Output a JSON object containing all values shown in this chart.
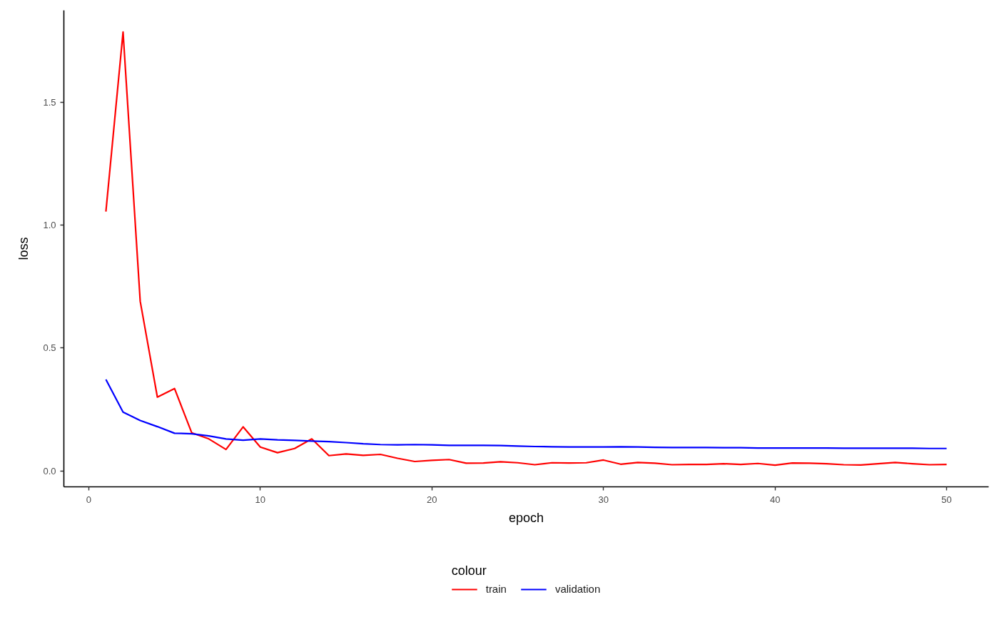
{
  "chart_data": {
    "type": "line",
    "xlabel": "epoch",
    "ylabel": "loss",
    "legend_title": "colour",
    "legend": "bottom",
    "grid": false,
    "x": [
      1,
      2,
      3,
      4,
      5,
      6,
      7,
      8,
      9,
      10,
      11,
      12,
      13,
      14,
      15,
      16,
      17,
      18,
      19,
      20,
      21,
      22,
      23,
      24,
      25,
      26,
      27,
      28,
      29,
      30,
      31,
      32,
      33,
      34,
      35,
      36,
      37,
      38,
      39,
      40,
      41,
      42,
      43,
      44,
      45,
      46,
      47,
      48,
      49,
      50
    ],
    "series": [
      {
        "name": "train",
        "color": "#ff0000",
        "values": [
          1.055,
          1.786,
          0.69,
          0.3,
          0.335,
          0.155,
          0.13,
          0.087,
          0.179,
          0.097,
          0.074,
          0.091,
          0.13,
          0.062,
          0.069,
          0.063,
          0.067,
          0.051,
          0.038,
          0.043,
          0.046,
          0.031,
          0.032,
          0.037,
          0.033,
          0.025,
          0.033,
          0.032,
          0.033,
          0.044,
          0.027,
          0.034,
          0.031,
          0.025,
          0.026,
          0.026,
          0.029,
          0.026,
          0.03,
          0.023,
          0.032,
          0.031,
          0.029,
          0.025,
          0.024,
          0.029,
          0.034,
          0.029,
          0.025,
          0.026
        ]
      },
      {
        "name": "validation",
        "color": "#0000ff",
        "values": [
          0.372,
          0.239,
          0.205,
          0.18,
          0.153,
          0.151,
          0.142,
          0.13,
          0.125,
          0.13,
          0.126,
          0.124,
          0.121,
          0.119,
          0.115,
          0.11,
          0.107,
          0.106,
          0.107,
          0.106,
          0.104,
          0.104,
          0.104,
          0.103,
          0.101,
          0.099,
          0.098,
          0.097,
          0.097,
          0.097,
          0.098,
          0.097,
          0.096,
          0.095,
          0.095,
          0.095,
          0.094,
          0.094,
          0.093,
          0.093,
          0.093,
          0.093,
          0.093,
          0.092,
          0.092,
          0.092,
          0.092,
          0.092,
          0.091,
          0.091
        ]
      }
    ],
    "xlim": [
      -1.45,
      52.45
    ],
    "ylim": [
      -0.065,
      1.874
    ],
    "xticks": [
      0,
      10,
      20,
      30,
      40,
      50
    ],
    "yticks": [
      {
        "value": 0,
        "label": "0.0"
      },
      {
        "value": 0.5,
        "label": "0.5"
      },
      {
        "value": 1,
        "label": "1.0"
      },
      {
        "value": 1.5,
        "label": "1.5"
      }
    ]
  }
}
